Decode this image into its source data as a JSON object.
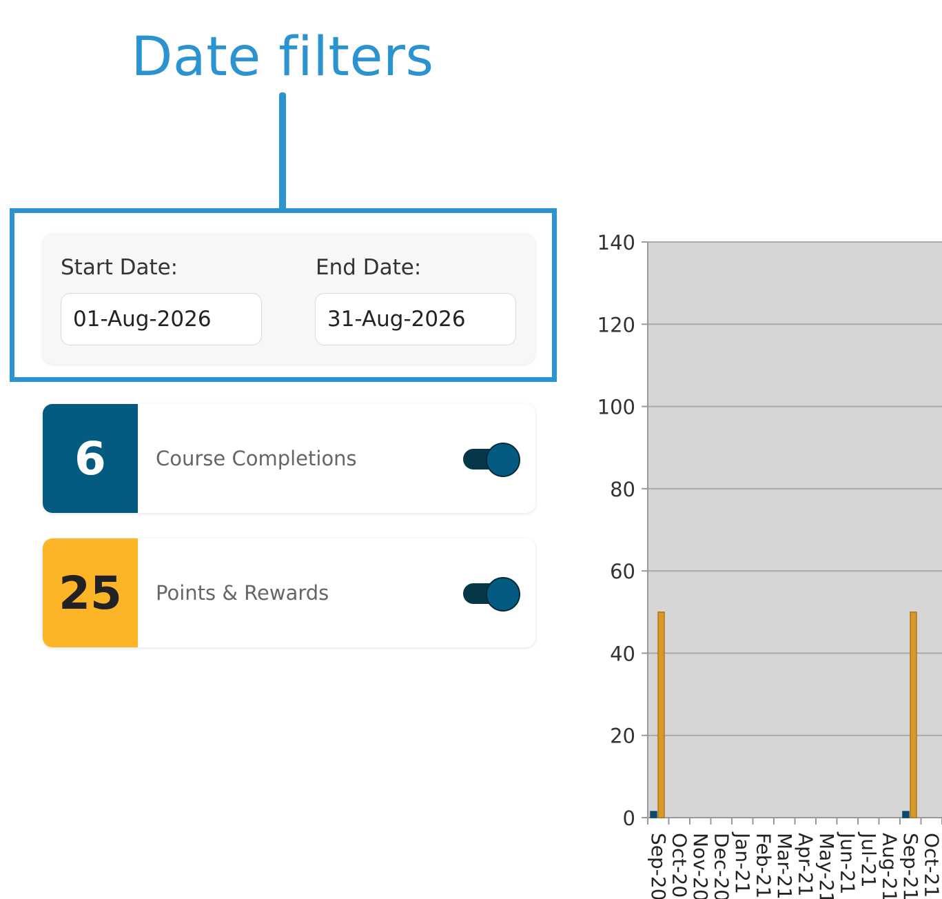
{
  "callout": {
    "title": "Date filters"
  },
  "filters": {
    "start_label": "Start Date:",
    "start_value": "01-Aug-2026",
    "end_label": "End Date:",
    "end_value": "31-Aug-2026"
  },
  "stats": [
    {
      "value": "6",
      "label": "Course Completions",
      "toggle_on": true,
      "color": "#045a80",
      "text_color": "#ffffff"
    },
    {
      "value": "25",
      "label": "Points & Rewards",
      "toggle_on": true,
      "color": "#fdb528",
      "text_color": "#222222"
    }
  ],
  "chart_data": {
    "type": "bar",
    "categories": [
      "Sep-20",
      "Oct-20",
      "Nov-20",
      "Dec-20",
      "Jan-21",
      "Feb-21",
      "Mar-21",
      "Apr-21",
      "May-21",
      "Jun-21",
      "Jul-21",
      "Aug-21",
      "Sep-21",
      "Oct-21"
    ],
    "series": [
      {
        "values": [
          1.5,
          0,
          0,
          0,
          0,
          0,
          0,
          0,
          0,
          0,
          0,
          0,
          1.5,
          0
        ],
        "color": "#0b4a6b"
      },
      {
        "values": [
          50,
          0,
          0,
          0,
          0,
          0,
          0,
          0,
          0,
          0,
          0,
          0,
          50,
          0
        ],
        "color": "#d9992a"
      }
    ],
    "ylim": [
      0,
      140
    ],
    "yticks": [
      0,
      20,
      40,
      60,
      80,
      100,
      120,
      140
    ],
    "grid": true,
    "background": "#d6d6d6"
  }
}
